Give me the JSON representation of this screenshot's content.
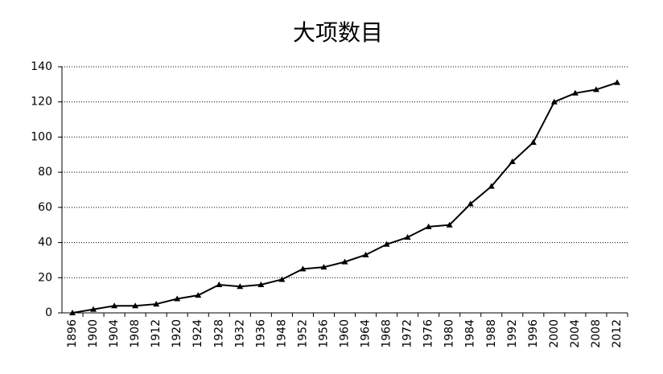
{
  "chart_data": {
    "type": "line",
    "title": "大项数目",
    "categories": [
      "1896",
      "1900",
      "1904",
      "1908",
      "1912",
      "1920",
      "1924",
      "1928",
      "1932",
      "1936",
      "1948",
      "1952",
      "1956",
      "1960",
      "1964",
      "1968",
      "1972",
      "1976",
      "1980",
      "1984",
      "1988",
      "1992",
      "1996",
      "2000",
      "2004",
      "2008",
      "2012"
    ],
    "values": [
      0,
      2,
      4,
      4,
      5,
      8,
      10,
      16,
      15,
      16,
      19,
      25,
      26,
      29,
      33,
      39,
      43,
      49,
      50,
      62,
      72,
      86,
      97,
      120,
      125,
      127,
      131
    ],
    "color": "#000000",
    "ylim": [
      0,
      140
    ],
    "yticks": [
      0,
      20,
      40,
      60,
      80,
      100,
      120,
      140
    ],
    "grid": true
  }
}
